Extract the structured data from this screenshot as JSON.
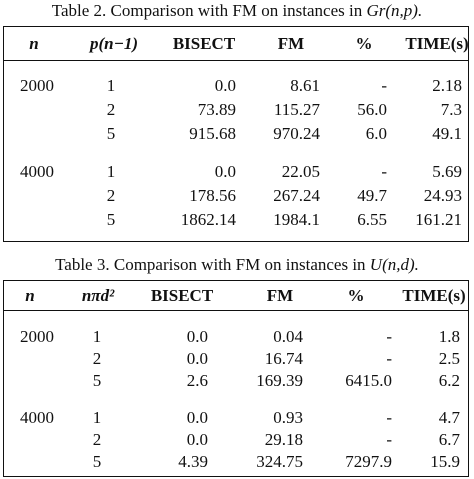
{
  "table2": {
    "caption_prefix": "Table 2.  Comparison with FM on instances in",
    "caption_math": "Gr(n,p).",
    "headers": [
      "n",
      "p(n−1)",
      "BISECT",
      "FM",
      "%",
      "TIME(s)"
    ],
    "groups": [
      {
        "n": "2000",
        "rows": [
          [
            "1",
            "0.0",
            "8.61",
            "-",
            "2.18"
          ],
          [
            "2",
            "73.89",
            "115.27",
            "56.0",
            "7.3"
          ],
          [
            "5",
            "915.68",
            "970.24",
            "6.0",
            "49.1"
          ]
        ]
      },
      {
        "n": "4000",
        "rows": [
          [
            "1",
            "0.0",
            "22.05",
            "-",
            "5.69"
          ],
          [
            "2",
            "178.56",
            "267.24",
            "49.7",
            "24.93"
          ],
          [
            "5",
            "1862.14",
            "1984.1",
            "6.55",
            "161.21"
          ]
        ]
      }
    ]
  },
  "table3": {
    "caption_prefix": "Table 3.  Comparison with FM on instances in",
    "caption_math": "U(n,d).",
    "headers": [
      "n",
      "nπd²",
      "BISECT",
      "FM",
      "%",
      "TIME(s)"
    ],
    "groups": [
      {
        "n": "2000",
        "rows": [
          [
            "1",
            "0.0",
            "0.04",
            "-",
            "1.8"
          ],
          [
            "2",
            "0.0",
            "16.74",
            "-",
            "2.5"
          ],
          [
            "5",
            "2.6",
            "169.39",
            "6415.0",
            "6.2"
          ]
        ]
      },
      {
        "n": "4000",
        "rows": [
          [
            "1",
            "0.0",
            "0.93",
            "-",
            "4.7"
          ],
          [
            "2",
            "0.0",
            "29.18",
            "-",
            "6.7"
          ],
          [
            "5",
            "4.39",
            "324.75",
            "7297.9",
            "15.9"
          ]
        ]
      }
    ]
  }
}
